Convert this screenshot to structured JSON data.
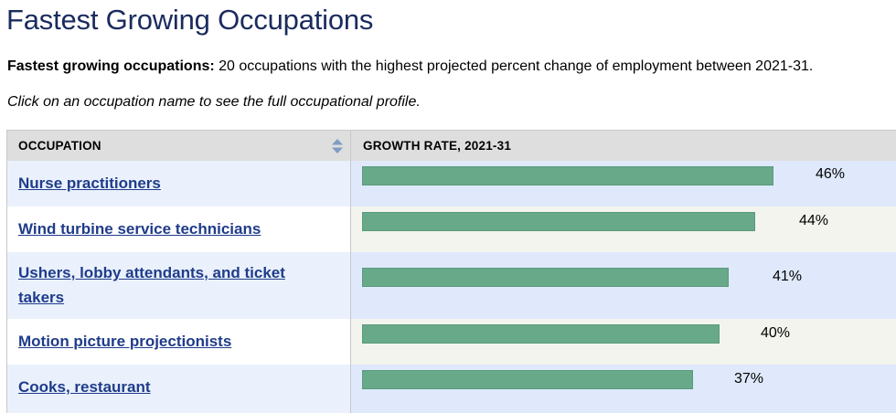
{
  "page": {
    "title": "Fastest Growing Occupations",
    "intro_bold": "Fastest growing occupations:",
    "intro_text": " 20 occupations with the highest projected percent change of employment between 2021-31.",
    "hint": "Click on an occupation name to see the full occupational profile."
  },
  "table": {
    "col_occupation": "OCCUPATION",
    "col_growth": "GROWTH RATE, 2021-31",
    "sort_icon": "sort-up-down-icon",
    "rows": [
      {
        "occupation": "Nurse practitioners",
        "growth_label": "46%",
        "growth_value": 46
      },
      {
        "occupation": "Wind turbine service technicians",
        "growth_label": "44%",
        "growth_value": 44
      },
      {
        "occupation": "Ushers, lobby attendants, and ticket takers",
        "growth_label": "41%",
        "growth_value": 41
      },
      {
        "occupation": "Motion picture projectionists",
        "growth_label": "40%",
        "growth_value": 40
      },
      {
        "occupation": "Cooks, restaurant",
        "growth_label": "37%",
        "growth_value": 37
      }
    ]
  },
  "colors": {
    "title": "#1a2b5e",
    "link": "#1f3c8a",
    "bar": "#68a98a",
    "row_blue": "#dfe9fb",
    "row_blue_light": "#eaf1fd",
    "row_beige": "#f4f4ee",
    "header": "#dedede"
  }
}
